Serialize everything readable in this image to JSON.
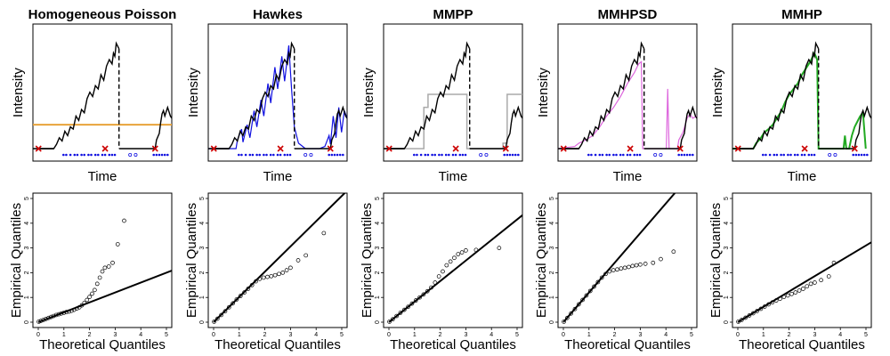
{
  "chart_data": [
    {
      "type": "line",
      "title": "Homogeneous Poisson",
      "xlabel": "Time",
      "ylabel": "Intensity",
      "fit_color": "#e8a33a",
      "fit_style": "constant",
      "constant_level": 0.22
    },
    {
      "type": "line",
      "title": "Hawkes",
      "xlabel": "Time",
      "ylabel": "Intensity",
      "fit_color": "#1010e0",
      "fit_style": "hawkes"
    },
    {
      "type": "line",
      "title": "MMPP",
      "xlabel": "Time",
      "ylabel": "Intensity",
      "fit_color": "#aaaaaa",
      "fit_style": "mmpp"
    },
    {
      "type": "line",
      "title": "MMHPSD",
      "xlabel": "Time",
      "ylabel": "Intensity",
      "fit_color": "#dd66dd",
      "fit_style": "mmhpsd"
    },
    {
      "type": "line",
      "title": "MMHP",
      "xlabel": "Time",
      "ylabel": "Intensity",
      "fit_color": "#22aa22",
      "fit_style": "mmhp"
    },
    {
      "type": "scatter",
      "xlabel": "Theoretical Quantiles",
      "ylabel": "Empirical Quantiles",
      "xlim": [
        0,
        5
      ],
      "ylim": [
        0,
        5
      ],
      "ticks": [
        "0",
        "1",
        "2",
        "3",
        "4",
        "5"
      ],
      "ref_line_slope": 0.4,
      "points": [
        [
          0.02,
          0.02
        ],
        [
          0.1,
          0.05
        ],
        [
          0.2,
          0.09
        ],
        [
          0.3,
          0.13
        ],
        [
          0.4,
          0.17
        ],
        [
          0.5,
          0.21
        ],
        [
          0.6,
          0.25
        ],
        [
          0.7,
          0.29
        ],
        [
          0.8,
          0.32
        ],
        [
          0.9,
          0.35
        ],
        [
          1.0,
          0.38
        ],
        [
          1.1,
          0.41
        ],
        [
          1.2,
          0.43
        ],
        [
          1.3,
          0.46
        ],
        [
          1.4,
          0.5
        ],
        [
          1.5,
          0.55
        ],
        [
          1.6,
          0.6
        ],
        [
          1.7,
          0.68
        ],
        [
          1.8,
          0.78
        ],
        [
          1.9,
          0.9
        ],
        [
          2.0,
          1.02
        ],
        [
          2.1,
          1.15
        ],
        [
          2.2,
          1.3
        ],
        [
          2.3,
          1.55
        ],
        [
          2.4,
          1.8
        ],
        [
          2.5,
          2.05
        ],
        [
          2.6,
          2.2
        ],
        [
          2.75,
          2.25
        ],
        [
          2.9,
          2.4
        ],
        [
          3.1,
          3.15
        ],
        [
          3.35,
          4.1
        ]
      ]
    },
    {
      "type": "scatter",
      "xlabel": "Theoretical Quantiles",
      "ylabel": "Empirical Quantiles",
      "xlim": [
        0,
        5
      ],
      "ylim": [
        0,
        5
      ],
      "ticks": [
        "0",
        "1",
        "2",
        "3",
        "4",
        "5"
      ],
      "ref_line_slope": 1.02,
      "points": [
        [
          0.02,
          0.02
        ],
        [
          0.15,
          0.14
        ],
        [
          0.3,
          0.29
        ],
        [
          0.45,
          0.44
        ],
        [
          0.6,
          0.6
        ],
        [
          0.75,
          0.76
        ],
        [
          0.9,
          0.92
        ],
        [
          1.05,
          1.06
        ],
        [
          1.2,
          1.2
        ],
        [
          1.35,
          1.35
        ],
        [
          1.5,
          1.5
        ],
        [
          1.65,
          1.65
        ],
        [
          1.8,
          1.75
        ],
        [
          1.95,
          1.8
        ],
        [
          2.1,
          1.83
        ],
        [
          2.25,
          1.86
        ],
        [
          2.4,
          1.9
        ],
        [
          2.55,
          1.95
        ],
        [
          2.7,
          2.0
        ],
        [
          2.85,
          2.1
        ],
        [
          3.0,
          2.2
        ],
        [
          3.3,
          2.5
        ],
        [
          3.6,
          2.7
        ],
        [
          4.3,
          3.6
        ]
      ]
    },
    {
      "type": "scatter",
      "xlabel": "Theoretical Quantiles",
      "ylabel": "Empirical Quantiles",
      "xlim": [
        0,
        5
      ],
      "ylim": [
        0,
        5
      ],
      "ticks": [
        "0",
        "1",
        "2",
        "3",
        "4",
        "5"
      ],
      "ref_line_slope": 0.83,
      "points": [
        [
          0.02,
          0.02
        ],
        [
          0.15,
          0.12
        ],
        [
          0.3,
          0.25
        ],
        [
          0.45,
          0.38
        ],
        [
          0.6,
          0.5
        ],
        [
          0.75,
          0.62
        ],
        [
          0.9,
          0.75
        ],
        [
          1.05,
          0.88
        ],
        [
          1.2,
          1.0
        ],
        [
          1.35,
          1.12
        ],
        [
          1.5,
          1.25
        ],
        [
          1.65,
          1.4
        ],
        [
          1.8,
          1.6
        ],
        [
          1.95,
          1.85
        ],
        [
          2.1,
          2.05
        ],
        [
          2.25,
          2.3
        ],
        [
          2.4,
          2.45
        ],
        [
          2.55,
          2.6
        ],
        [
          2.7,
          2.75
        ],
        [
          2.85,
          2.82
        ],
        [
          3.0,
          2.9
        ],
        [
          3.4,
          2.92
        ],
        [
          4.3,
          3.0
        ]
      ]
    },
    {
      "type": "scatter",
      "xlabel": "Theoretical Quantiles",
      "ylabel": "Empirical Quantiles",
      "xlim": [
        0,
        5
      ],
      "ylim": [
        0,
        5
      ],
      "ticks": [
        "0",
        "1",
        "2",
        "3",
        "4",
        "5"
      ],
      "ref_line_slope": 1.2,
      "points": [
        [
          0.02,
          0.02
        ],
        [
          0.15,
          0.17
        ],
        [
          0.3,
          0.35
        ],
        [
          0.45,
          0.53
        ],
        [
          0.6,
          0.72
        ],
        [
          0.75,
          0.9
        ],
        [
          0.9,
          1.08
        ],
        [
          1.05,
          1.26
        ],
        [
          1.2,
          1.44
        ],
        [
          1.35,
          1.62
        ],
        [
          1.5,
          1.8
        ],
        [
          1.65,
          1.95
        ],
        [
          1.8,
          2.05
        ],
        [
          1.95,
          2.1
        ],
        [
          2.1,
          2.13
        ],
        [
          2.25,
          2.17
        ],
        [
          2.4,
          2.2
        ],
        [
          2.55,
          2.23
        ],
        [
          2.7,
          2.27
        ],
        [
          2.85,
          2.3
        ],
        [
          3.0,
          2.33
        ],
        [
          3.2,
          2.36
        ],
        [
          3.5,
          2.4
        ],
        [
          3.8,
          2.55
        ],
        [
          4.3,
          2.85
        ]
      ]
    },
    {
      "type": "scatter",
      "xlabel": "Theoretical Quantiles",
      "ylabel": "Empirical Quantiles",
      "xlim": [
        0,
        5
      ],
      "ylim": [
        0,
        5
      ],
      "ticks": [
        "0",
        "1",
        "2",
        "3",
        "4",
        "5"
      ],
      "ref_line_slope": 0.62,
      "points": [
        [
          0.02,
          0.02
        ],
        [
          0.15,
          0.09
        ],
        [
          0.3,
          0.18
        ],
        [
          0.45,
          0.27
        ],
        [
          0.6,
          0.36
        ],
        [
          0.75,
          0.45
        ],
        [
          0.9,
          0.54
        ],
        [
          1.05,
          0.63
        ],
        [
          1.2,
          0.72
        ],
        [
          1.35,
          0.8
        ],
        [
          1.5,
          0.88
        ],
        [
          1.65,
          0.95
        ],
        [
          1.8,
          1.02
        ],
        [
          1.95,
          1.08
        ],
        [
          2.1,
          1.14
        ],
        [
          2.25,
          1.2
        ],
        [
          2.4,
          1.28
        ],
        [
          2.55,
          1.35
        ],
        [
          2.7,
          1.45
        ],
        [
          2.85,
          1.55
        ],
        [
          3.0,
          1.6
        ],
        [
          3.25,
          1.7
        ],
        [
          3.55,
          1.85
        ],
        [
          3.75,
          2.4
        ]
      ]
    }
  ]
}
